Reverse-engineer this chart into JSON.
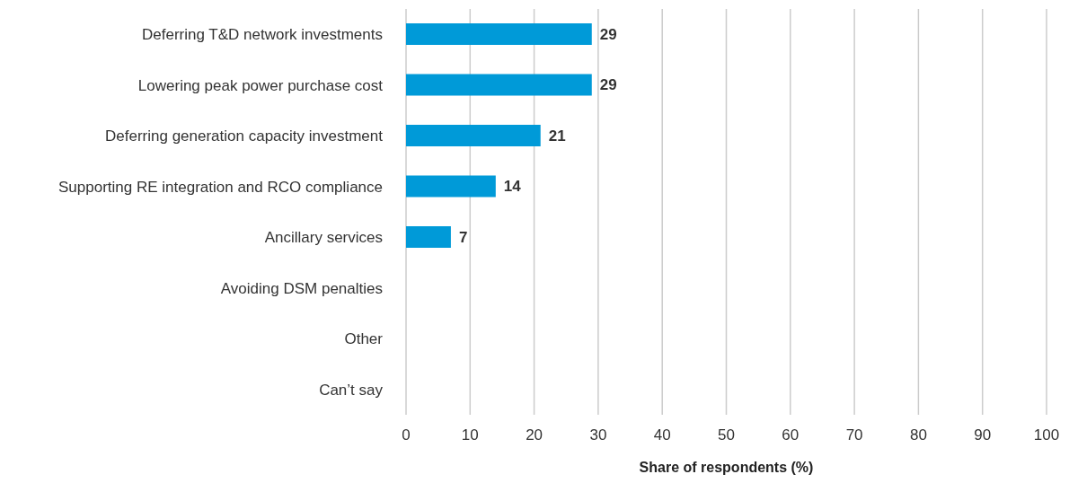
{
  "chart_data": {
    "type": "bar",
    "orientation": "horizontal",
    "xlabel": "Share of respondents (%)",
    "categories": [
      "Deferring T&D network investments",
      "Lowering peak power purchase cost",
      "Deferring generation capacity investment",
      "Supporting RE integration and RCO compliance",
      "Ancillary services",
      "Avoiding DSM penalties",
      "Other",
      "Can’t say"
    ],
    "values": [
      29,
      29,
      21,
      14,
      7,
      0,
      0,
      0
    ],
    "value_labels": [
      "29",
      "29",
      "21",
      "14",
      "7",
      null,
      null,
      null
    ],
    "color": "#009ad8",
    "xlim": [
      0,
      100
    ],
    "xticks": [
      0,
      10,
      20,
      30,
      40,
      50,
      60,
      70,
      80,
      90,
      100
    ],
    "grid": "x",
    "legend": false
  }
}
